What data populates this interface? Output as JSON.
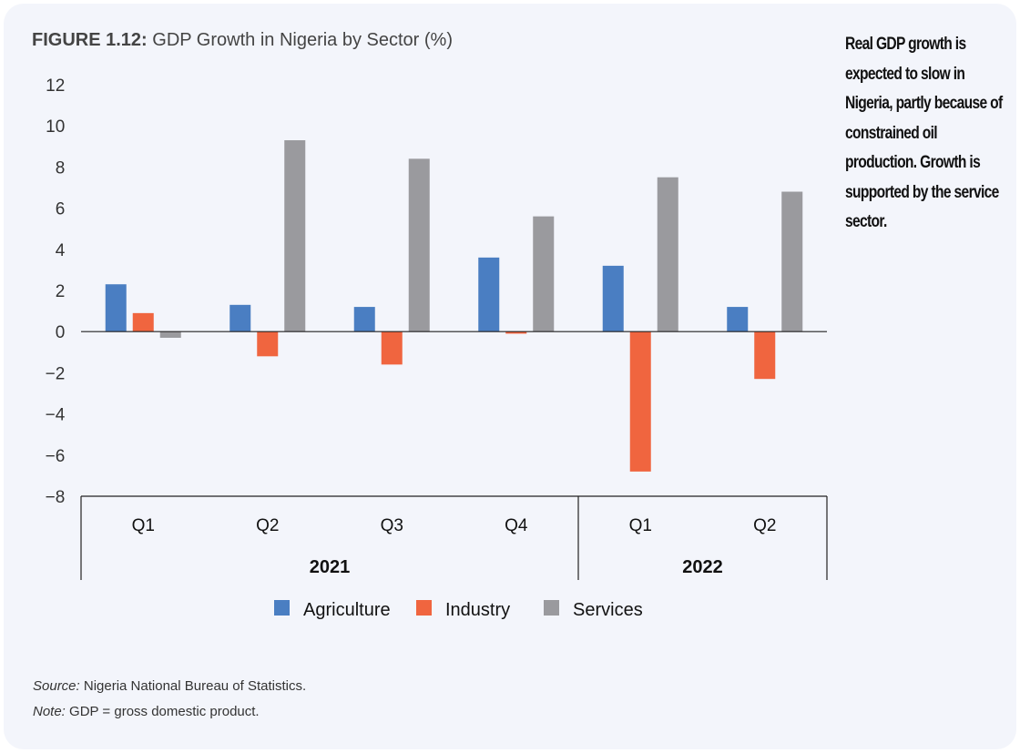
{
  "title_prefix": "FIGURE 1.12:",
  "title_text": "GDP Growth in Nigeria by Sector (%)",
  "side_note": "Real GDP growth is expected to slow in Nigeria, partly because of constrained oil production. Growth is supported by the service sector.",
  "source_label": "Source:",
  "source_text": "Nigeria National Bureau of Statistics.",
  "note_label": "Note:",
  "note_text": "GDP = gross domestic product.",
  "chart_data": {
    "type": "bar",
    "title": "GDP Growth in Nigeria by Sector (%)",
    "categories": [
      "Q1",
      "Q2",
      "Q3",
      "Q4",
      "Q1",
      "Q2"
    ],
    "groups": [
      {
        "label": "2021",
        "span": 4
      },
      {
        "label": "2022",
        "span": 2
      }
    ],
    "series": [
      {
        "name": "Agriculture",
        "color": "#4a7ec2",
        "values": [
          2.3,
          1.3,
          1.2,
          3.6,
          3.2,
          1.2
        ]
      },
      {
        "name": "Industry",
        "color": "#f0653f",
        "values": [
          0.9,
          -1.2,
          -1.6,
          -0.1,
          -6.8,
          -2.3
        ]
      },
      {
        "name": "Services",
        "color": "#9a9a9e",
        "values": [
          -0.3,
          9.3,
          8.4,
          5.6,
          7.5,
          6.8
        ]
      }
    ],
    "ylim": [
      -8,
      12
    ],
    "yticks": [
      12,
      10,
      8,
      6,
      4,
      2,
      0,
      -2,
      -4,
      -6,
      -8
    ],
    "grid": false,
    "legend": "bottom"
  }
}
